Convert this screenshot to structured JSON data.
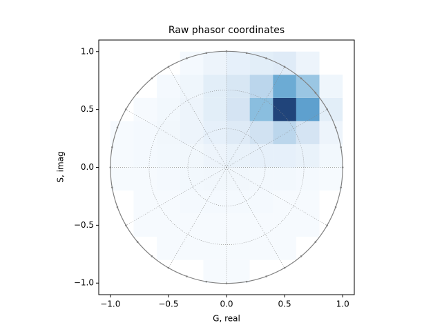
{
  "chart_data": {
    "type": "hist2d",
    "title": "Raw phasor coordinates",
    "x_label": "G, real",
    "y_label": "S, imag",
    "xlim": [
      -1.1,
      1.1
    ],
    "ylim": [
      -1.1,
      1.1
    ],
    "xticks": [
      {
        "value": -1,
        "label": "−1.0"
      },
      {
        "value": -0.5,
        "label": "−0.5"
      },
      {
        "value": 0,
        "label": "0.0"
      },
      {
        "value": 0.5,
        "label": "0.5"
      },
      {
        "value": 1,
        "label": "1.0"
      }
    ],
    "yticks": [
      {
        "value": -1,
        "label": "−1.0"
      },
      {
        "value": -0.5,
        "label": "−0.5"
      },
      {
        "value": 0,
        "label": "0.0"
      },
      {
        "value": 0.5,
        "label": "0.5"
      },
      {
        "value": 1,
        "label": "1.0"
      }
    ],
    "x_bins": [
      -1,
      -0.8,
      -0.6,
      -0.4,
      -0.2,
      0,
      0.2,
      0.4,
      0.6,
      0.8,
      1
    ],
    "y_bins": [
      -1,
      -0.8,
      -0.6,
      -0.4,
      -0.2,
      0,
      0.2,
      0.4,
      0.6,
      0.8,
      1
    ],
    "counts": [
      [
        0,
        0,
        0,
        0,
        1,
        1,
        0,
        0,
        0,
        0
      ],
      [
        0,
        0,
        1,
        1,
        1,
        1,
        1,
        1,
        0,
        0
      ],
      [
        0,
        1,
        1,
        1,
        1,
        1,
        1,
        1,
        1,
        0
      ],
      [
        0,
        1,
        1,
        2,
        2,
        2,
        2,
        1,
        1,
        0
      ],
      [
        1,
        1,
        2,
        3,
        4,
        4,
        3,
        3,
        2,
        1
      ],
      [
        1,
        2,
        3,
        4,
        6,
        8,
        10,
        10,
        8,
        3
      ],
      [
        1,
        2,
        4,
        6,
        10,
        15,
        22,
        30,
        20,
        6
      ],
      [
        0,
        1,
        3,
        6,
        12,
        20,
        45,
        100,
        60,
        12
      ],
      [
        0,
        0,
        2,
        5,
        12,
        18,
        30,
        55,
        40,
        5
      ],
      [
        0,
        0,
        0,
        2,
        6,
        10,
        12,
        14,
        6,
        0
      ]
    ],
    "colormap": [
      "#f7fbff",
      "#c6dbef",
      "#6baed6",
      "#2171b5",
      "#08306b"
    ]
  }
}
